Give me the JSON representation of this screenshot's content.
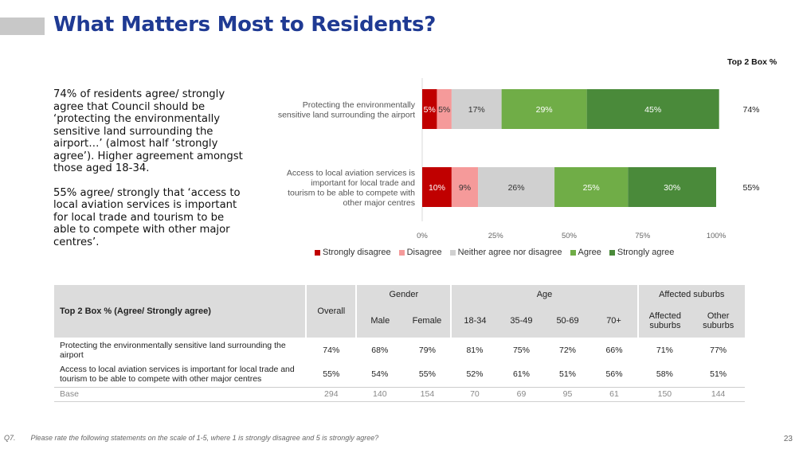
{
  "title": "What Matters Most to Residents?",
  "commentary": [
    "74% of residents agree/ strongly agree that Council should be ‘protecting the environmentally sensitive land surrounding the airport…’ (almost half ‘strongly agree’). Higher agreement amongst those aged 18-34.",
    "55% agree/ strongly that ‘access to local aviation services is important for local trade and tourism to be able to compete with other major centres’."
  ],
  "top2box_header": "Top 2 Box %",
  "chart_data": {
    "type": "bar",
    "orientation": "horizontal",
    "stacked": true,
    "categories": [
      [
        "Protecting the environmentally",
        "sensitive land surrounding the airport"
      ],
      [
        "Access to local aviation services is",
        "important for local trade and",
        "tourism to be able to compete with",
        "other major centres"
      ]
    ],
    "series": [
      {
        "name": "Strongly disagree",
        "color": "#c00000",
        "values": [
          5,
          10
        ],
        "labels": [
          "5%",
          "10%"
        ]
      },
      {
        "name": "Disagree",
        "color": "#f59a9a",
        "values": [
          5,
          9
        ],
        "labels": [
          "5%",
          "9%"
        ]
      },
      {
        "name": "Neither agree nor disagree",
        "color": "#d0d0d0",
        "values": [
          17,
          26
        ],
        "labels": [
          "17%",
          "26%"
        ]
      },
      {
        "name": "Agree",
        "color": "#70ad47",
        "values": [
          29,
          25
        ],
        "labels": [
          "29%",
          "25%"
        ]
      },
      {
        "name": "Strongly agree",
        "color": "#4a8a3a",
        "values": [
          45,
          30
        ],
        "labels": [
          "45%",
          "30%"
        ]
      }
    ],
    "top2box": [
      "74%",
      "55%"
    ],
    "xlim": [
      0,
      100
    ],
    "xticks": [
      "0%",
      "25%",
      "50%",
      "75%",
      "100%"
    ],
    "legend_position": "bottom"
  },
  "table": {
    "row_header": "Top 2 Box % (Agree/ Strongly agree)",
    "overall": "Overall",
    "groups": {
      "gender": "Gender",
      "age": "Age",
      "suburbs": "Affected suburbs"
    },
    "columns": [
      "Male",
      "Female",
      "18-34",
      "35-49",
      "50-69",
      "70+",
      "Affected suburbs",
      "Other suburbs"
    ],
    "rows": [
      {
        "label": "Protecting the environmentally sensitive land surrounding the airport",
        "values": [
          "74%",
          "68%",
          "79%",
          "81%",
          "75%",
          "72%",
          "66%",
          "71%",
          "77%"
        ]
      },
      {
        "label": "Access to local aviation services is important for local trade and tourism to be able to compete with other major centres",
        "values": [
          "55%",
          "54%",
          "55%",
          "52%",
          "61%",
          "51%",
          "56%",
          "58%",
          "51%"
        ]
      }
    ],
    "base": {
      "label": "Base",
      "values": [
        "294",
        "140",
        "154",
        "70",
        "69",
        "95",
        "61",
        "150",
        "144"
      ]
    }
  },
  "footnote": {
    "q": "Q7.",
    "text": "Please rate the following statements on the scale of 1-5, where 1 is strongly disagree and 5 is strongly agree?"
  },
  "page_number": "23"
}
